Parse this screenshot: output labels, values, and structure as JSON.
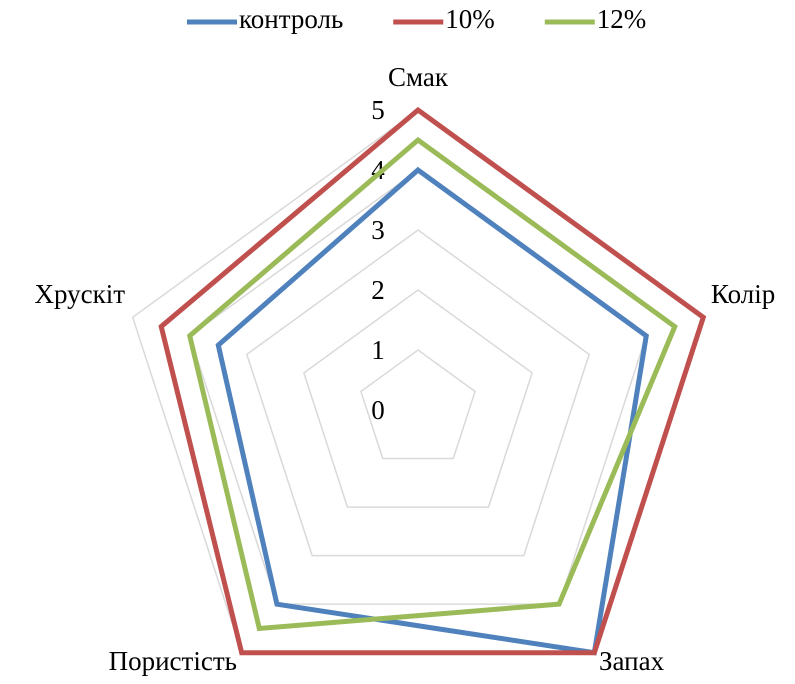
{
  "chart_data": {
    "type": "radar",
    "categories": [
      "Смак",
      "Колір",
      "Запах",
      "Пористість",
      "Хрускіт"
    ],
    "series": [
      {
        "name": "контроль",
        "color": "#4f81bd",
        "values": [
          4,
          4,
          5,
          4,
          3.5
        ]
      },
      {
        "name": "10%",
        "color": "#c0504d",
        "values": [
          5,
          5,
          5,
          5,
          4.5
        ]
      },
      {
        "name": "12%",
        "color": "#9bbb59",
        "values": [
          4.5,
          4.5,
          4,
          4.5,
          4
        ]
      }
    ],
    "rlim": [
      0,
      5
    ],
    "rticks": [
      0,
      1,
      2,
      3,
      4,
      5
    ],
    "grid": true,
    "legend": "top"
  }
}
